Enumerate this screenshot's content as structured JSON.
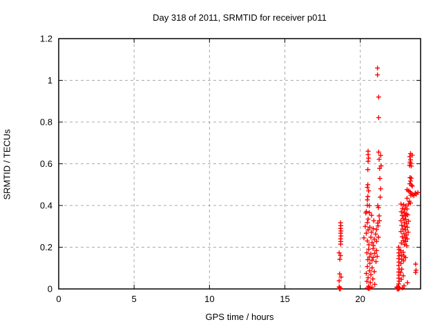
{
  "colors": {
    "background": "#ffffff",
    "marker": "#ff0000",
    "grid": "#a8a8a8",
    "border": "#000000",
    "text": "#000000"
  },
  "chart_data": {
    "type": "scatter",
    "title": "Day 318 of 2011, SRMTID for receiver p011",
    "xlabel": "GPS time / hours",
    "ylabel": "SRMTID / TECUs",
    "xlim": [
      0,
      24
    ],
    "ylim": [
      0,
      1.2
    ],
    "xtick_values": [
      0,
      5,
      10,
      15,
      20
    ],
    "xtick_labels": [
      "0",
      "5",
      "10",
      "15",
      "20"
    ],
    "ytick_values": [
      0,
      0.2,
      0.4,
      0.6,
      0.8,
      1.0,
      1.2
    ],
    "ytick_labels": [
      "0",
      "0.2",
      "0.4",
      "0.6",
      "0.8",
      "1",
      "1.2"
    ],
    "grid": true,
    "legend_position": "none",
    "marker": "plus",
    "series": [
      {
        "name": "SRMTID",
        "points": [
          [
            18.69,
            0.317
          ],
          [
            18.71,
            0.303
          ],
          [
            18.69,
            0.29
          ],
          [
            18.72,
            0.278
          ],
          [
            18.7,
            0.267
          ],
          [
            18.72,
            0.254
          ],
          [
            18.69,
            0.24
          ],
          [
            18.71,
            0.227
          ],
          [
            18.7,
            0.215
          ],
          [
            18.6,
            0.173
          ],
          [
            18.69,
            0.16
          ],
          [
            18.64,
            0.142
          ],
          [
            18.63,
            0.072
          ],
          [
            18.73,
            0.057
          ],
          [
            18.6,
            0.039
          ],
          [
            18.6,
            0.01
          ],
          [
            18.64,
            0.005
          ],
          [
            18.68,
            0.002
          ],
          [
            18.62,
            0.0
          ],
          [
            18.66,
            0.0
          ],
          [
            20.52,
            0.66
          ],
          [
            20.52,
            0.644
          ],
          [
            20.55,
            0.627
          ],
          [
            20.52,
            0.612
          ],
          [
            20.5,
            0.572
          ],
          [
            20.5,
            0.5
          ],
          [
            20.47,
            0.487
          ],
          [
            20.55,
            0.47
          ],
          [
            20.5,
            0.443
          ],
          [
            20.47,
            0.427
          ],
          [
            20.47,
            0.401
          ],
          [
            20.6,
            0.399
          ],
          [
            20.4,
            0.371
          ],
          [
            20.37,
            0.364
          ],
          [
            20.6,
            0.366
          ],
          [
            20.75,
            0.353
          ],
          [
            20.52,
            0.335
          ],
          [
            20.9,
            0.327
          ],
          [
            20.47,
            0.318
          ],
          [
            20.33,
            0.3
          ],
          [
            20.63,
            0.296
          ],
          [
            20.86,
            0.289
          ],
          [
            20.52,
            0.283
          ],
          [
            21.08,
            0.285
          ],
          [
            20.75,
            0.272
          ],
          [
            20.4,
            0.267
          ],
          [
            21.02,
            0.263
          ],
          [
            20.24,
            0.245
          ],
          [
            20.7,
            0.248
          ],
          [
            20.93,
            0.239
          ],
          [
            20.47,
            0.23
          ],
          [
            20.78,
            0.222
          ],
          [
            21.08,
            0.228
          ],
          [
            20.57,
            0.212
          ],
          [
            20.87,
            0.208
          ],
          [
            20.55,
            0.19
          ],
          [
            20.85,
            0.193
          ],
          [
            21.08,
            0.184
          ],
          [
            20.44,
            0.173
          ],
          [
            20.7,
            0.168
          ],
          [
            20.96,
            0.171
          ],
          [
            20.6,
            0.153
          ],
          [
            20.86,
            0.151
          ],
          [
            21.12,
            0.156
          ],
          [
            20.5,
            0.14
          ],
          [
            20.78,
            0.138
          ],
          [
            21.04,
            0.131
          ],
          [
            20.64,
            0.123
          ],
          [
            20.47,
            0.107
          ],
          [
            20.78,
            0.101
          ],
          [
            20.62,
            0.087
          ],
          [
            20.93,
            0.083
          ],
          [
            20.4,
            0.074
          ],
          [
            20.7,
            0.068
          ],
          [
            20.52,
            0.054
          ],
          [
            20.83,
            0.048
          ],
          [
            20.44,
            0.036
          ],
          [
            20.67,
            0.03
          ],
          [
            20.96,
            0.022
          ],
          [
            20.55,
            0.013
          ],
          [
            20.78,
            0.008
          ],
          [
            20.48,
            0.005
          ],
          [
            20.55,
            0.002
          ],
          [
            20.62,
            0.004
          ],
          [
            21.14,
            1.059
          ],
          [
            21.14,
            1.026
          ],
          [
            21.22,
            0.92
          ],
          [
            21.22,
            0.821
          ],
          [
            21.22,
            0.656
          ],
          [
            21.35,
            0.64
          ],
          [
            21.25,
            0.621
          ],
          [
            21.38,
            0.59
          ],
          [
            21.28,
            0.578
          ],
          [
            21.3,
            0.53
          ],
          [
            21.35,
            0.48
          ],
          [
            21.32,
            0.44
          ],
          [
            21.16,
            0.399
          ],
          [
            21.2,
            0.39
          ],
          [
            21.25,
            0.35
          ],
          [
            21.27,
            0.327
          ],
          [
            21.16,
            0.316
          ],
          [
            21.18,
            0.302
          ],
          [
            21.2,
            0.248
          ],
          [
            22.55,
            0.2
          ],
          [
            22.57,
            0.189
          ],
          [
            22.55,
            0.173
          ],
          [
            22.58,
            0.159
          ],
          [
            22.55,
            0.145
          ],
          [
            22.57,
            0.129
          ],
          [
            22.55,
            0.112
          ],
          [
            22.58,
            0.096
          ],
          [
            22.55,
            0.081
          ],
          [
            22.57,
            0.066
          ],
          [
            22.55,
            0.052
          ],
          [
            22.58,
            0.037
          ],
          [
            22.55,
            0.024
          ],
          [
            22.42,
            0.008
          ],
          [
            22.47,
            0.004
          ],
          [
            22.52,
            0.0
          ],
          [
            22.57,
            0.006
          ],
          [
            22.45,
            0.0
          ],
          [
            22.5,
            0.01
          ],
          [
            22.55,
            0.0
          ],
          [
            22.6,
            0.004
          ],
          [
            23.33,
            0.649
          ],
          [
            23.28,
            0.634
          ],
          [
            23.33,
            0.619
          ],
          [
            23.3,
            0.608
          ],
          [
            23.36,
            0.601
          ],
          [
            23.27,
            0.592
          ],
          [
            23.38,
            0.589
          ],
          [
            23.44,
            0.641
          ],
          [
            23.3,
            0.534
          ],
          [
            23.38,
            0.531
          ],
          [
            23.33,
            0.517
          ],
          [
            23.28,
            0.504
          ],
          [
            23.4,
            0.498
          ],
          [
            23.45,
            0.493
          ],
          [
            23.1,
            0.476
          ],
          [
            23.2,
            0.47
          ],
          [
            23.3,
            0.465
          ],
          [
            23.38,
            0.458
          ],
          [
            23.47,
            0.452
          ],
          [
            23.55,
            0.447
          ],
          [
            23.65,
            0.46
          ],
          [
            23.72,
            0.455
          ],
          [
            23.82,
            0.462
          ],
          [
            23.35,
            0.449
          ],
          [
            23.1,
            0.435
          ],
          [
            23.25,
            0.42
          ],
          [
            23.33,
            0.412
          ],
          [
            23.2,
            0.407
          ],
          [
            22.7,
            0.407
          ],
          [
            22.88,
            0.404
          ],
          [
            23.02,
            0.398
          ],
          [
            22.8,
            0.386
          ],
          [
            22.95,
            0.381
          ],
          [
            23.1,
            0.383
          ],
          [
            22.72,
            0.37
          ],
          [
            22.9,
            0.365
          ],
          [
            23.05,
            0.36
          ],
          [
            22.78,
            0.352
          ],
          [
            22.98,
            0.349
          ],
          [
            23.15,
            0.355
          ],
          [
            22.85,
            0.338
          ],
          [
            23.02,
            0.333
          ],
          [
            22.7,
            0.327
          ],
          [
            23.2,
            0.325
          ],
          [
            22.92,
            0.318
          ],
          [
            23.08,
            0.312
          ],
          [
            22.75,
            0.305
          ],
          [
            22.95,
            0.3
          ],
          [
            23.12,
            0.296
          ],
          [
            22.82,
            0.288
          ],
          [
            23.0,
            0.283
          ],
          [
            22.7,
            0.275
          ],
          [
            23.17,
            0.272
          ],
          [
            22.9,
            0.265
          ],
          [
            23.05,
            0.258
          ],
          [
            22.78,
            0.25
          ],
          [
            22.97,
            0.245
          ],
          [
            23.12,
            0.24
          ],
          [
            22.85,
            0.232
          ],
          [
            23.02,
            0.227
          ],
          [
            22.72,
            0.22
          ],
          [
            22.93,
            0.213
          ],
          [
            23.08,
            0.207
          ],
          [
            22.68,
            0.183
          ],
          [
            22.85,
            0.176
          ],
          [
            22.72,
            0.163
          ],
          [
            22.9,
            0.157
          ],
          [
            23.0,
            0.15
          ],
          [
            22.75,
            0.142
          ],
          [
            22.88,
            0.135
          ],
          [
            22.7,
            0.122
          ],
          [
            23.67,
            0.119
          ],
          [
            23.7,
            0.09
          ],
          [
            23.67,
            0.079
          ],
          [
            22.75,
            0.095
          ],
          [
            22.68,
            0.079
          ],
          [
            22.85,
            0.063
          ],
          [
            22.72,
            0.046
          ],
          [
            23.13,
            0.03
          ],
          [
            22.9,
            0.015
          ],
          [
            22.8,
            0.005
          ]
        ]
      }
    ]
  }
}
